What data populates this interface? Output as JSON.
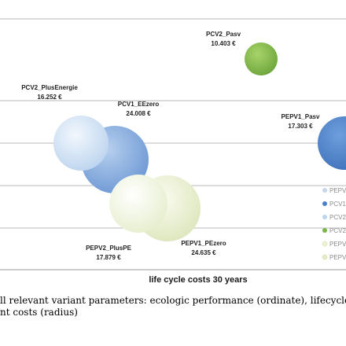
{
  "chart_data": {
    "type": "bubble",
    "xlabel": "life cycle costs 30 years",
    "points": [
      {
        "name": "PCV2_Pasv",
        "label_line1": "PCV2_Pasv",
        "label_line2": "10.403 €",
        "x": 0.66,
        "y": 0.925,
        "radius_value": 10403,
        "color": "#7ab648"
      },
      {
        "name": "PEPV1_Pasv",
        "label_line1": "PEPV1_Pasv",
        "label_line2": "17.303 €",
        "x": 0.99,
        "y": 0.61,
        "radius_value": 17303,
        "color": "#4a80c8"
      },
      {
        "name": "PCV1_EEzero",
        "label_line1": "PCV1_EEzero",
        "label_line2": "24.008 €",
        "x": 0.33,
        "y": 0.49,
        "radius_value": 24008,
        "color": "#86aee0"
      },
      {
        "name": "PCV2_PlusEnergie",
        "label_line1": "PCV2_PlusEnergie",
        "label_line2": "16.252 €",
        "x": 0.235,
        "y": 0.6,
        "radius_value": 16252,
        "color": "#dbe9f8"
      },
      {
        "name": "PEPV1_PEzero",
        "label_line1": "PEPV1_PEzero",
        "label_line2": "24.635 €",
        "x": 0.485,
        "y": 0.3,
        "radius_value": 24635,
        "color": "#eef3d4"
      },
      {
        "name": "PEPV2_PlusPE",
        "label_line1": "PEPV2_PlusPE",
        "label_line2": "17.879 €",
        "x": 0.38,
        "y": 0.32,
        "radius_value": 17879,
        "color": "#f4f8e8"
      }
    ],
    "gridlines": true,
    "legend": {
      "placement": "right",
      "entries": [
        {
          "text": "PEPV",
          "color": "#c5d6ec"
        },
        {
          "text": "PCV1",
          "color": "#4a80c8"
        },
        {
          "text": "PCV2",
          "color": "#bcd4ee"
        },
        {
          "text": "PCV2",
          "color": "#7ab648"
        },
        {
          "text": "PEPV",
          "color": "#eef3d4"
        },
        {
          "text": "PEPV",
          "color": "#e4ecc8"
        }
      ]
    }
  },
  "caption": {
    "line1": "ll relevant variant parameters: ecologic performance (ordinate), lifecycle cos",
    "line2": "nt costs (radius)"
  }
}
